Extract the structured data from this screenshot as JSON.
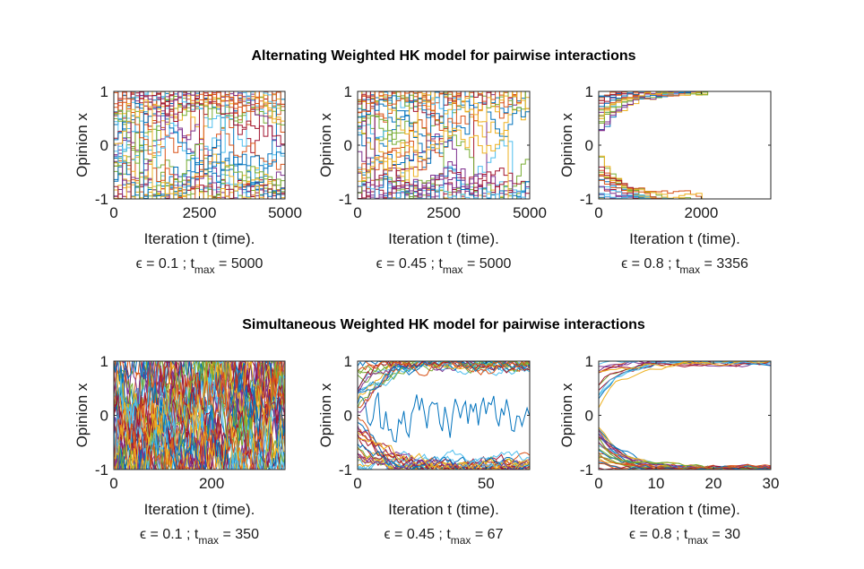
{
  "chart_data": [
    {
      "type": "line",
      "title": "Alternating Weighted HK model for pairwise interactions",
      "model": "alternating",
      "xlabel": "Iteration t (time).",
      "ylabel": "Opinion x",
      "xlim": [
        0,
        5000
      ],
      "ylim": [
        -1,
        1
      ],
      "xticks": [
        "0",
        "2500",
        "5000"
      ],
      "xtick_values": [
        0,
        2500,
        5000
      ],
      "yticks": [
        "-1",
        "0",
        "1"
      ],
      "ytick_values": [
        -1,
        0,
        1
      ],
      "epsilon": "0.1",
      "t_max": "5000",
      "caption_prefix": "ϵ = 0.1 ;   t",
      "caption_sub": "max",
      "caption_suffix": " = 5000",
      "behaviour": "no consensus, opinions fluctuate across full range"
    },
    {
      "type": "line",
      "model": "alternating",
      "xlabel": "Iteration t (time).",
      "ylabel": "Opinion x",
      "xlim": [
        0,
        5000
      ],
      "ylim": [
        -1,
        1
      ],
      "xticks": [
        "0",
        "2500",
        "5000"
      ],
      "xtick_values": [
        0,
        2500,
        5000
      ],
      "yticks": [
        "-1",
        "0",
        "1"
      ],
      "ytick_values": [
        -1,
        0,
        1
      ],
      "epsilon": "0.45",
      "t_max": "5000",
      "caption_prefix": "ϵ = 0.45 ;   t",
      "caption_sub": "max",
      "caption_suffix": " = 5000",
      "behaviour": "most opinions polarize to -1 and 1, a few keep fluctuating"
    },
    {
      "type": "line",
      "model": "alternating",
      "xlabel": "Iteration t (time).",
      "ylabel": "Opinion x",
      "xlim": [
        0,
        3356
      ],
      "ylim": [
        -1,
        1
      ],
      "xticks": [
        "0",
        "2000"
      ],
      "xtick_values": [
        0,
        2000
      ],
      "yticks": [
        "-1",
        "0",
        "1"
      ],
      "ytick_values": [
        -1,
        0,
        1
      ],
      "epsilon": "0.8",
      "t_max": "3356",
      "caption_prefix": "ϵ = 0.8 ;   t",
      "caption_sub": "max",
      "caption_suffix": " = 3356",
      "behaviour": "opinions polarize into two clusters at -1 and 1"
    },
    {
      "type": "line",
      "title": "Simultaneous Weighted HK model for pairwise interactions",
      "model": "simultaneous",
      "xlabel": "Iteration t (time).",
      "ylabel": "Opinion x",
      "xlim": [
        0,
        350
      ],
      "ylim": [
        -1,
        1
      ],
      "xticks": [
        "0",
        "200"
      ],
      "xtick_values": [
        0,
        200
      ],
      "yticks": [
        "-1",
        "0",
        "1"
      ],
      "ytick_values": [
        -1,
        0,
        1
      ],
      "epsilon": "0.1",
      "t_max": "350",
      "caption_prefix": "ϵ = 0.1 ;   t",
      "caption_sub": "max",
      "caption_suffix": " = 350",
      "behaviour": "dense noisy fluctuation across full range"
    },
    {
      "type": "line",
      "model": "simultaneous",
      "xlabel": "Iteration t (time).",
      "ylabel": "Opinion x",
      "xlim": [
        0,
        67
      ],
      "ylim": [
        -1,
        1
      ],
      "xticks": [
        "0",
        "50"
      ],
      "xtick_values": [
        0,
        50
      ],
      "yticks": [
        "-1",
        "0",
        "1"
      ],
      "ytick_values": [
        -1,
        0,
        1
      ],
      "epsilon": "0.45",
      "t_max": "67",
      "caption_prefix": "ϵ = 0.45 ;   t",
      "caption_sub": "max",
      "caption_suffix": " = 67",
      "behaviour": "polarization to -1 and 1, one opinion stays in the middle"
    },
    {
      "type": "line",
      "model": "simultaneous",
      "xlabel": "Iteration t (time).",
      "ylabel": "Opinion x",
      "xlim": [
        0,
        30
      ],
      "ylim": [
        -1,
        1
      ],
      "xticks": [
        "0",
        "10",
        "20",
        "30"
      ],
      "xtick_values": [
        0,
        10,
        20,
        30
      ],
      "yticks": [
        "-1",
        "0",
        "1"
      ],
      "ytick_values": [
        -1,
        0,
        1
      ],
      "epsilon": "0.8",
      "t_max": "30",
      "caption_prefix": "ϵ = 0.8 ;   t",
      "caption_sub": "max",
      "caption_suffix": " = 30",
      "behaviour": "fast polarization into two clusters"
    }
  ],
  "series_colors": [
    "#0072BD",
    "#D95319",
    "#EDB120",
    "#7E2F8E",
    "#77AC30",
    "#4DBEEE",
    "#A2142F"
  ]
}
